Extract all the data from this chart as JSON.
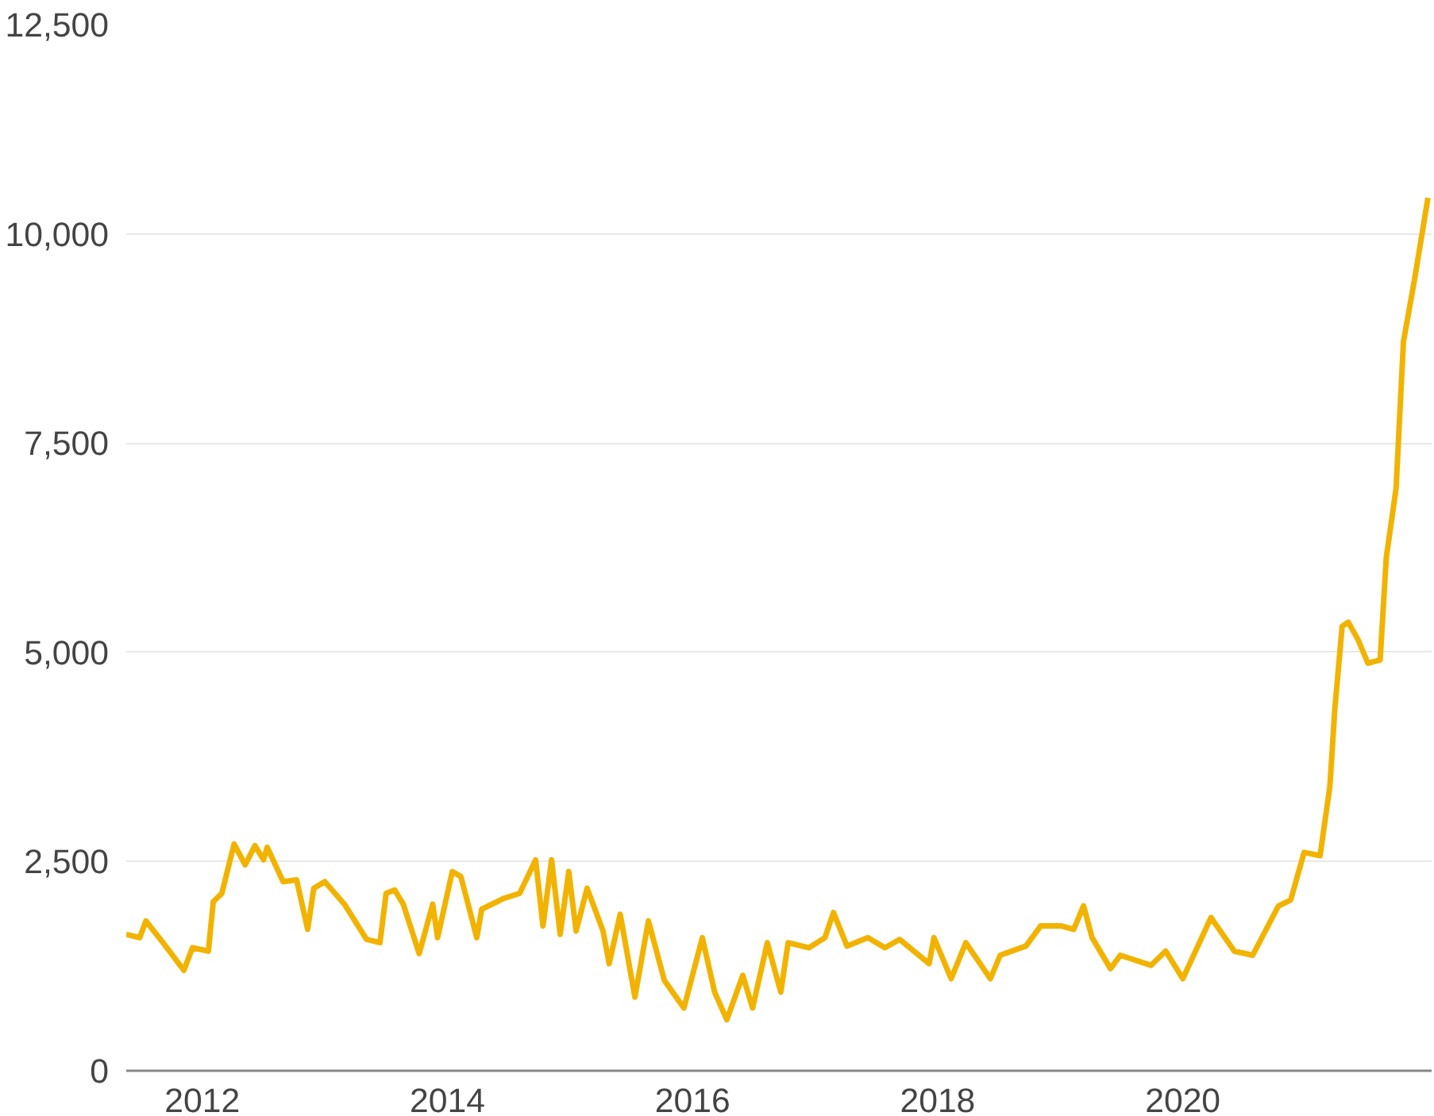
{
  "chart_data": {
    "type": "line",
    "xlim": [
      2011.38,
      2022.03
    ],
    "ylim": [
      0,
      12500
    ],
    "xticks": [
      2012,
      2014,
      2016,
      2018,
      2020
    ],
    "yticks": [
      {
        "value": 0,
        "label": "0"
      },
      {
        "value": 2500,
        "label": "2,500"
      },
      {
        "value": 5000,
        "label": "5,000"
      },
      {
        "value": 7500,
        "label": "7,500"
      },
      {
        "value": 10000,
        "label": "10,000"
      },
      {
        "value": 12500,
        "label": "12,500"
      }
    ],
    "grid": "y",
    "line_style": "solid",
    "x": [
      2011.38,
      2011.49,
      2011.54,
      2011.68,
      2011.85,
      2011.92,
      2012.05,
      2012.09,
      2012.16,
      2012.26,
      2012.35,
      2012.43,
      2012.5,
      2012.53,
      2012.66,
      2012.77,
      2012.86,
      2012.91,
      2013.0,
      2013.16,
      2013.34,
      2013.45,
      2013.5,
      2013.57,
      2013.64,
      2013.77,
      2013.88,
      2013.92,
      2014.04,
      2014.11,
      2014.24,
      2014.28,
      2014.46,
      2014.59,
      2014.72,
      2014.78,
      2014.85,
      2014.92,
      2014.99,
      2015.05,
      2015.14,
      2015.27,
      2015.32,
      2015.41,
      2015.53,
      2015.64,
      2015.77,
      2015.93,
      2016.08,
      2016.18,
      2016.28,
      2016.41,
      2016.49,
      2016.61,
      2016.72,
      2016.78,
      2016.95,
      2017.08,
      2017.15,
      2017.26,
      2017.43,
      2017.57,
      2017.69,
      2017.93,
      2017.97,
      2018.11,
      2018.23,
      2018.43,
      2018.51,
      2018.72,
      2018.84,
      2019.01,
      2019.11,
      2019.19,
      2019.26,
      2019.41,
      2019.49,
      2019.74,
      2019.86,
      2020.0,
      2020.23,
      2020.42,
      2020.57,
      2020.78,
      2020.88,
      2020.99,
      2021.12,
      2021.2,
      2021.24,
      2021.3,
      2021.35,
      2021.43,
      2021.51,
      2021.61,
      2021.66,
      2021.74,
      2021.8,
      2021.89,
      2022.0
    ],
    "series": [
      {
        "color": "#f2b300",
        "values": [
          1630,
          1590,
          1790,
          1530,
          1200,
          1470,
          1430,
          2020,
          2120,
          2710,
          2460,
          2690,
          2520,
          2670,
          2260,
          2280,
          1690,
          2180,
          2260,
          1990,
          1570,
          1530,
          2120,
          2160,
          1990,
          1400,
          1990,
          1590,
          2380,
          2320,
          1590,
          1930,
          2060,
          2120,
          2520,
          1730,
          2520,
          1630,
          2380,
          1670,
          2180,
          1670,
          1280,
          1870,
          880,
          1790,
          1080,
          750,
          1590,
          940,
          610,
          1140,
          750,
          1530,
          940,
          1530,
          1470,
          1590,
          1890,
          1490,
          1590,
          1470,
          1570,
          1280,
          1590,
          1100,
          1530,
          1100,
          1380,
          1490,
          1730,
          1730,
          1690,
          1970,
          1590,
          1220,
          1380,
          1260,
          1430,
          1100,
          1830,
          1430,
          1380,
          1970,
          2040,
          2610,
          2570,
          3400,
          4320,
          5310,
          5360,
          5150,
          4870,
          4910,
          6130,
          6960,
          8710,
          9450,
          10430
        ]
      }
    ]
  }
}
